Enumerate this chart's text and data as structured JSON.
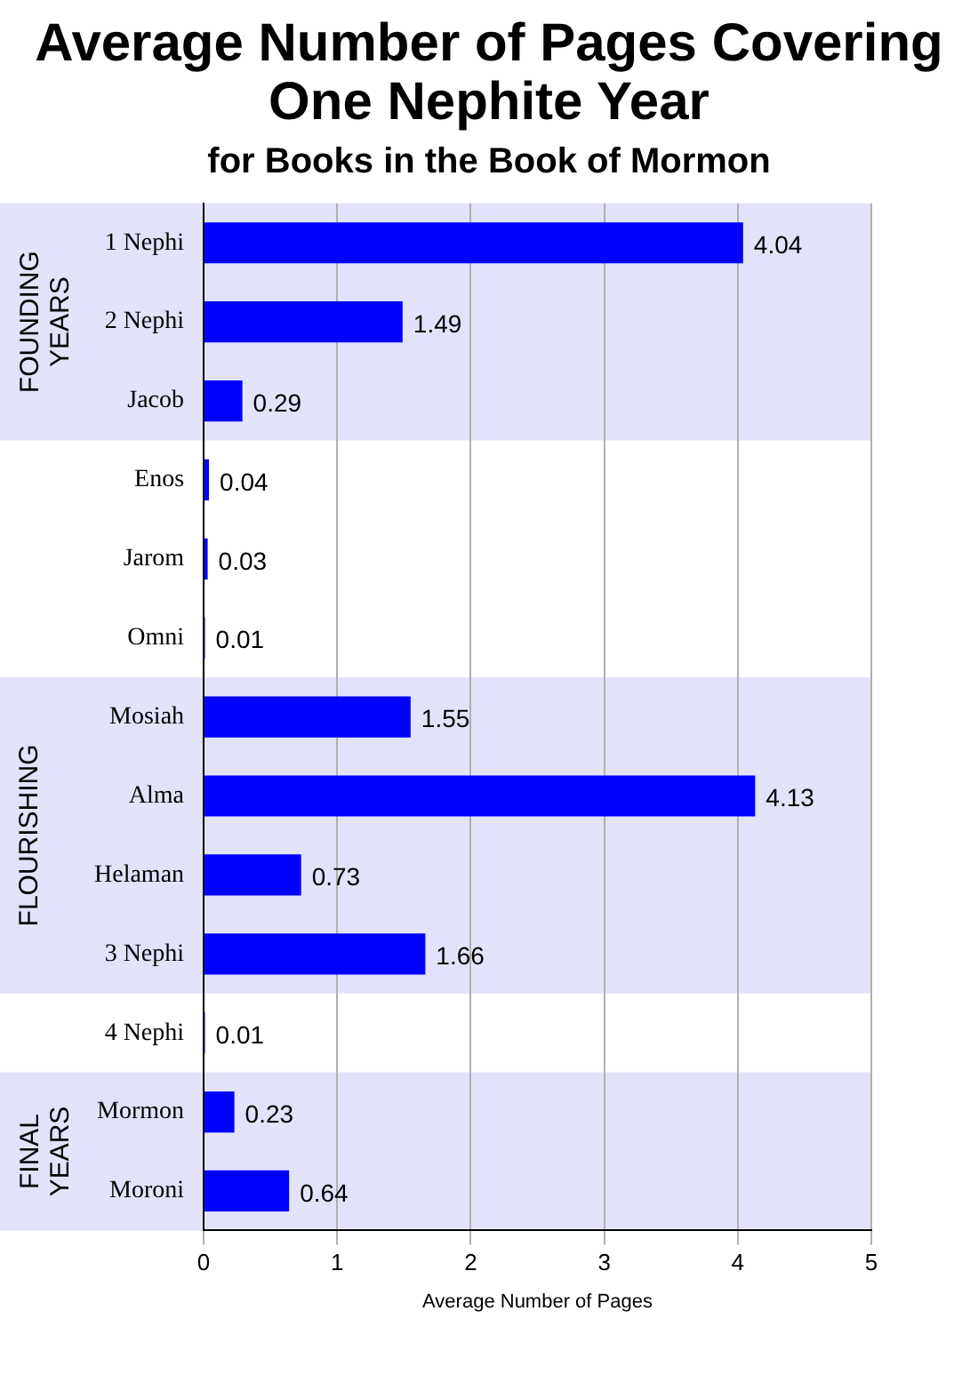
{
  "chart_data": {
    "type": "bar",
    "orientation": "horizontal",
    "title": "Average Number of Pages Covering One Nephite Year",
    "subtitle": "for Books in the Book of Mormon",
    "xlabel": "Average Number of Pages",
    "categories": [
      "1 Nephi",
      "2 Nephi",
      "Jacob",
      "Enos",
      "Jarom",
      "Omni",
      "Mosiah",
      "Alma",
      "Helaman",
      "3 Nephi",
      "4 Nephi",
      "Mormon",
      "Moroni"
    ],
    "values": [
      4.04,
      1.49,
      0.29,
      0.04,
      0.03,
      0.01,
      1.55,
      4.13,
      0.73,
      1.66,
      0.01,
      0.23,
      0.64
    ],
    "color": "#0000ff",
    "xlim": [
      0,
      5
    ],
    "xticks": [
      0,
      1,
      2,
      3,
      4,
      5
    ],
    "grid": "x",
    "data_labels": true,
    "legend": false,
    "bands": [
      {
        "axis": "y",
        "from": "1 Nephi",
        "to": "Jacob",
        "label": "FOUNDING YEARS",
        "color": "#e2e2fa"
      },
      {
        "axis": "y",
        "from": "Mosiah",
        "to": "3 Nephi",
        "label": "FLOURISHING",
        "color": "#e2e2fa"
      },
      {
        "axis": "y",
        "from": "Mormon",
        "to": "Moroni",
        "label": "FINAL YEARS",
        "color": "#e2e2fa"
      }
    ]
  }
}
